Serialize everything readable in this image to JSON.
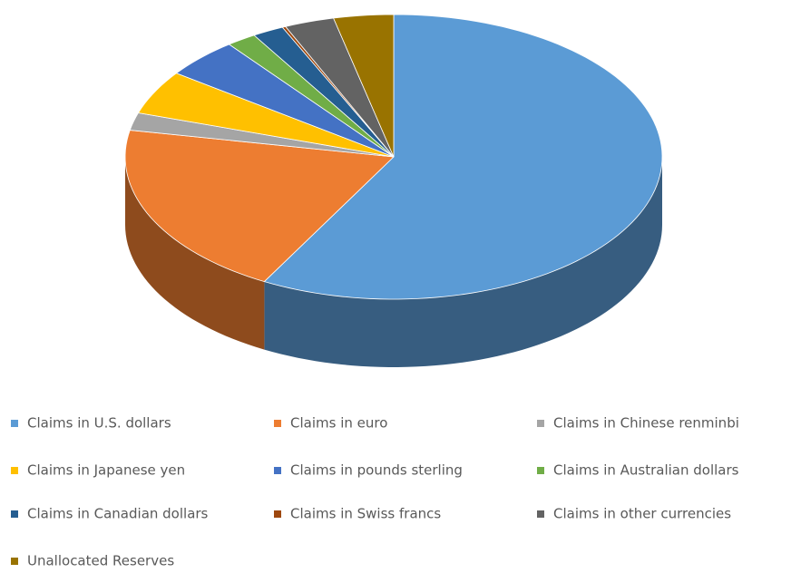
{
  "chart_data": {
    "type": "pie3d",
    "categories": [
      "Claims in U.S. dollars",
      "Claims in euro",
      "Claims in Chinese renminbi",
      "Claims in Japanese yen",
      "Claims in pounds sterling",
      "Claims in Australian dollars",
      "Claims in Canadian dollars",
      "Claims in Swiss francs",
      "Claims in other currencies",
      "Unallocated Reserves"
    ],
    "values": [
      58,
      20,
      2,
      5,
      4.5,
      1.8,
      1.9,
      0.2,
      3,
      3.6
    ],
    "colors": [
      "#5b9bd5",
      "#ed7d31",
      "#a5a5a5",
      "#ffc000",
      "#4472c4",
      "#70ad47",
      "#255e91",
      "#9e480e",
      "#636363",
      "#997300"
    ],
    "legend": "bottom"
  }
}
